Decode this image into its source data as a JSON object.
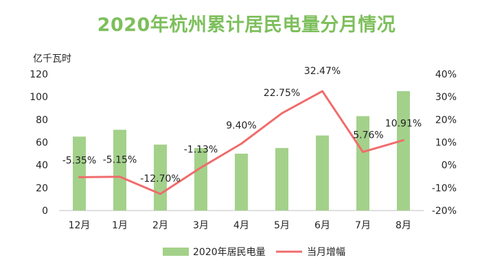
{
  "chart_data": {
    "type": "bar+line",
    "title": "2020年杭州累计居民电量分月情况",
    "ylabel": "亿千瓦时",
    "categories": [
      "12月",
      "1月",
      "2月",
      "3月",
      "4月",
      "5月",
      "6月",
      "7月",
      "8月"
    ],
    "ylim_left": [
      0,
      120
    ],
    "yticks_left": [
      "0",
      "20",
      "40",
      "60",
      "80",
      "100",
      "120"
    ],
    "ylim_right": [
      -20,
      40
    ],
    "yticks_right": [
      "-20%",
      "-10%",
      "0%",
      "10%",
      "20%",
      "30%",
      "40%"
    ],
    "series": [
      {
        "name": "2020年居民电量",
        "type": "bar",
        "axis": "left",
        "color": "#a3d18a",
        "values": [
          65,
          71,
          58,
          55,
          50,
          55,
          66,
          83,
          105
        ]
      },
      {
        "name": "当月增幅",
        "type": "line",
        "axis": "right",
        "color": "#f06b6b",
        "values": [
          -5.35,
          -5.15,
          -12.7,
          -1.13,
          9.4,
          22.75,
          32.47,
          5.76,
          10.91
        ],
        "labels": [
          "-5.35%",
          "-5.15%",
          "-12.70%",
          "-1.13%",
          "9.40%",
          "22.75%",
          "32.47%",
          "5.76%",
          "10.91%"
        ]
      }
    ],
    "legend_position": "bottom",
    "grid": false
  }
}
